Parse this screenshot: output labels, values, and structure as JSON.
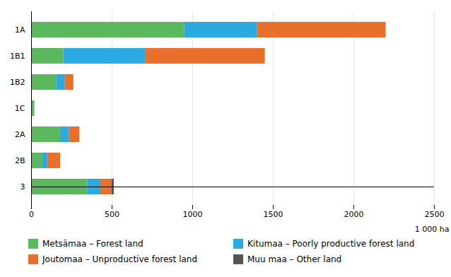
{
  "chart_data": {
    "type": "bar",
    "orientation": "horizontal",
    "stacked": true,
    "categories": [
      "1A",
      "1B1",
      "1B2",
      "1C",
      "2A",
      "2B",
      "3"
    ],
    "series": [
      {
        "name": "Metsämaa – Forest land",
        "color": "#5cb85c",
        "values": [
          950,
          200,
          155,
          20,
          180,
          70,
          350
        ]
      },
      {
        "name": "Kitumaa – Poorly productive forest land",
        "color": "#29abe2",
        "values": [
          450,
          510,
          52,
          0,
          55,
          30,
          80
        ]
      },
      {
        "name": "Joutomaa – Unproductive forest land",
        "color": "#e8702a",
        "values": [
          800,
          740,
          55,
          0,
          65,
          80,
          68
        ]
      },
      {
        "name": "Muu maa – Other land",
        "color": "#555555",
        "values": [
          0,
          0,
          0,
          0,
          0,
          0,
          15
        ]
      }
    ],
    "xlabel": "1 000 ha",
    "xlim": [
      0,
      2500
    ],
    "xticks": [
      0,
      500,
      1000,
      1500,
      2000,
      2500
    ],
    "grid": true,
    "legend": "bottom"
  }
}
